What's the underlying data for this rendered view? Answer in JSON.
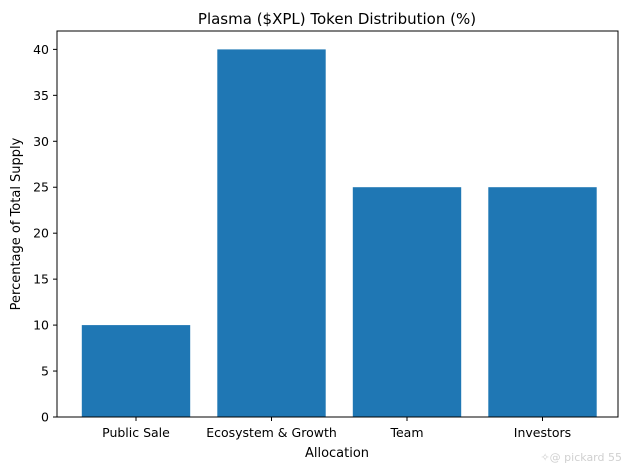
{
  "chart_data": {
    "type": "bar",
    "title": "Plasma ($XPL) Token Distribution (%)",
    "xlabel": "Allocation",
    "ylabel": "Percentage of Total Supply",
    "categories": [
      "Public Sale",
      "Ecosystem & Growth",
      "Team",
      "Investors"
    ],
    "values": [
      10,
      40,
      25,
      25
    ],
    "ylim": [
      0,
      42
    ],
    "yticks": [
      0,
      5,
      10,
      15,
      20,
      25,
      30,
      35,
      40
    ],
    "bar_color": "#1f77b4",
    "grid": false,
    "legend": "none"
  },
  "watermark": {
    "text": "✧@ pickard 55"
  }
}
